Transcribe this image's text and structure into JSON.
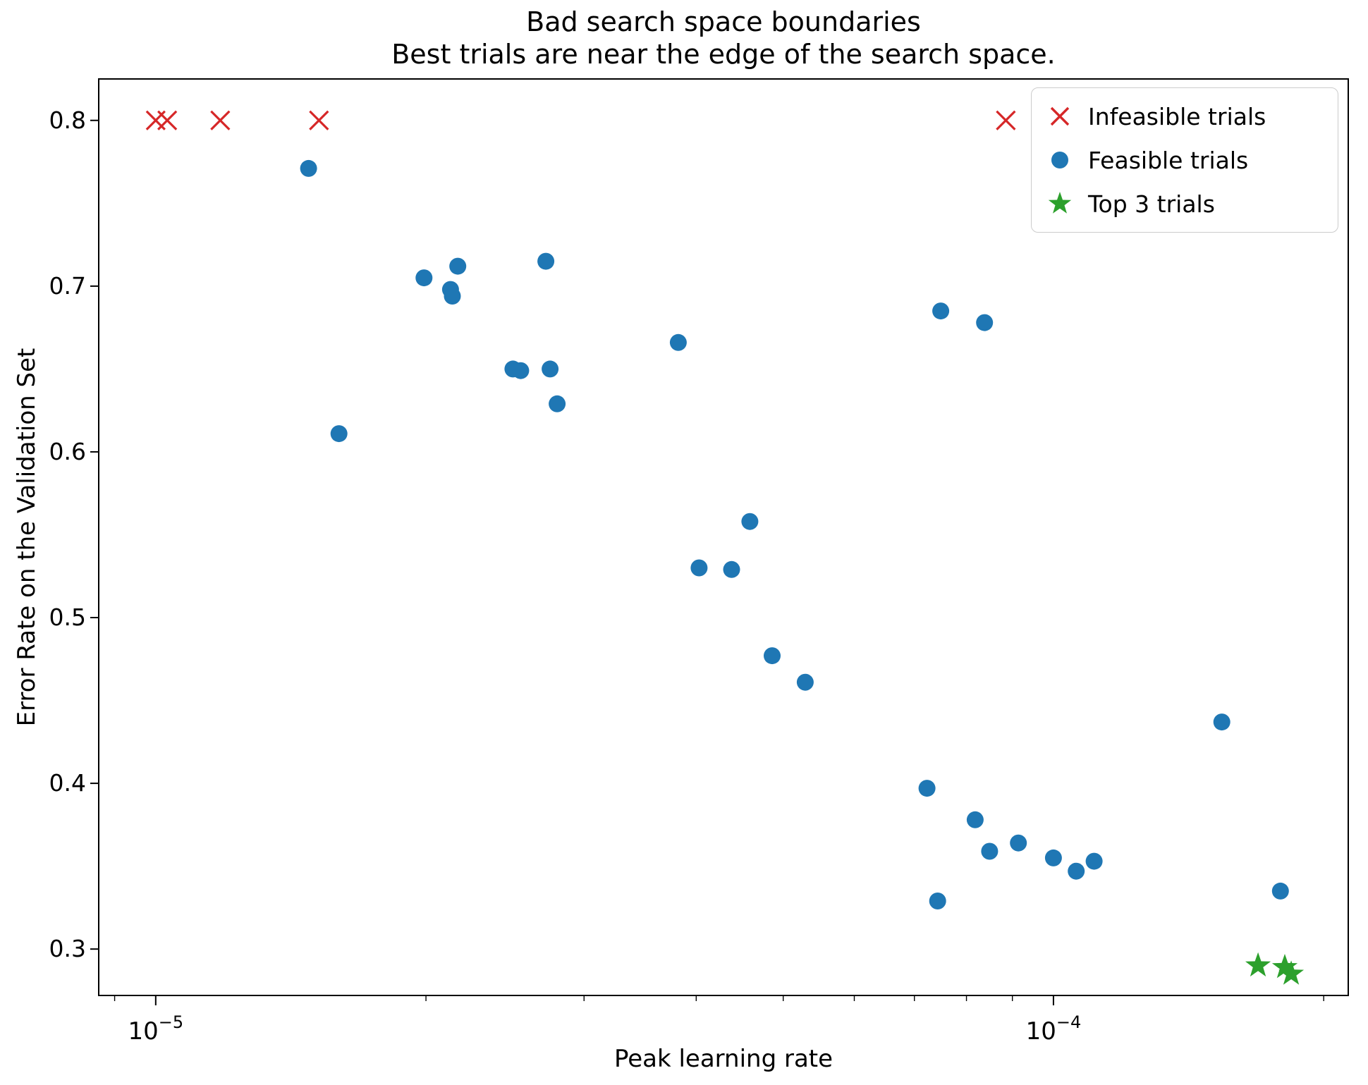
{
  "chart_data": {
    "type": "scatter",
    "title": "Bad search space boundaries",
    "subtitle": "Best trials are near the edge of the search space.",
    "xlabel": "Peak learning rate",
    "ylabel": "Error Rate on the Validation Set",
    "x_scale": "log",
    "grid": false,
    "legend_position": "upper right",
    "xlim": [
      8.64e-06,
      0.000213
    ],
    "ylim": [
      0.272,
      0.825
    ],
    "xticks": [
      {
        "value": 1e-05,
        "mantissa": "10",
        "exponent": "−5"
      },
      {
        "value": 0.0001,
        "mantissa": "10",
        "exponent": "−4"
      }
    ],
    "x_minor_ticks": [
      9e-06,
      2e-05,
      3e-05,
      4e-05,
      5e-05,
      6e-05,
      7e-05,
      8e-05,
      9e-05,
      0.0002
    ],
    "ytick_values": [
      0.3,
      0.4,
      0.5,
      0.6,
      0.7,
      0.8
    ],
    "ytick_labels": [
      "0.3",
      "0.4",
      "0.5",
      "0.6",
      "0.7",
      "0.8"
    ],
    "series": [
      {
        "id": "infeasible-trials",
        "name": "Infeasible trials",
        "marker": "x",
        "color": "#d62728",
        "points": [
          [
            1e-05,
            0.8
          ],
          [
            1.03e-05,
            0.8
          ],
          [
            1.18e-05,
            0.8
          ],
          [
            1.52e-05,
            0.8
          ],
          [
            8.85e-05,
            0.8
          ]
        ]
      },
      {
        "id": "feasible-trials",
        "name": "Feasible trials",
        "marker": "circle",
        "color": "#1f77b4",
        "points": [
          [
            1.48e-05,
            0.771
          ],
          [
            1.6e-05,
            0.611
          ],
          [
            1.99e-05,
            0.705
          ],
          [
            2.13e-05,
            0.698
          ],
          [
            2.14e-05,
            0.694
          ],
          [
            2.17e-05,
            0.712
          ],
          [
            2.5e-05,
            0.65
          ],
          [
            2.55e-05,
            0.649
          ],
          [
            2.72e-05,
            0.715
          ],
          [
            2.75e-05,
            0.65
          ],
          [
            2.8e-05,
            0.629
          ],
          [
            3.82e-05,
            0.666
          ],
          [
            4.03e-05,
            0.53
          ],
          [
            4.38e-05,
            0.529
          ],
          [
            4.59e-05,
            0.558
          ],
          [
            4.86e-05,
            0.477
          ],
          [
            5.29e-05,
            0.461
          ],
          [
            7.23e-05,
            0.397
          ],
          [
            7.43e-05,
            0.329
          ],
          [
            7.49e-05,
            0.685
          ],
          [
            8.18e-05,
            0.378
          ],
          [
            8.38e-05,
            0.678
          ],
          [
            8.49e-05,
            0.359
          ],
          [
            9.14e-05,
            0.364
          ],
          [
            0.0001,
            0.355
          ],
          [
            0.000106,
            0.347
          ],
          [
            0.000111,
            0.353
          ],
          [
            0.000154,
            0.437
          ],
          [
            0.000179,
            0.335
          ]
        ]
      },
      {
        "id": "top-3-trials",
        "name": "Top 3 trials",
        "marker": "star",
        "color": "#2ca02c",
        "points": [
          [
            0.000169,
            0.29
          ],
          [
            0.000181,
            0.289
          ],
          [
            0.000184,
            0.285
          ]
        ]
      }
    ]
  }
}
